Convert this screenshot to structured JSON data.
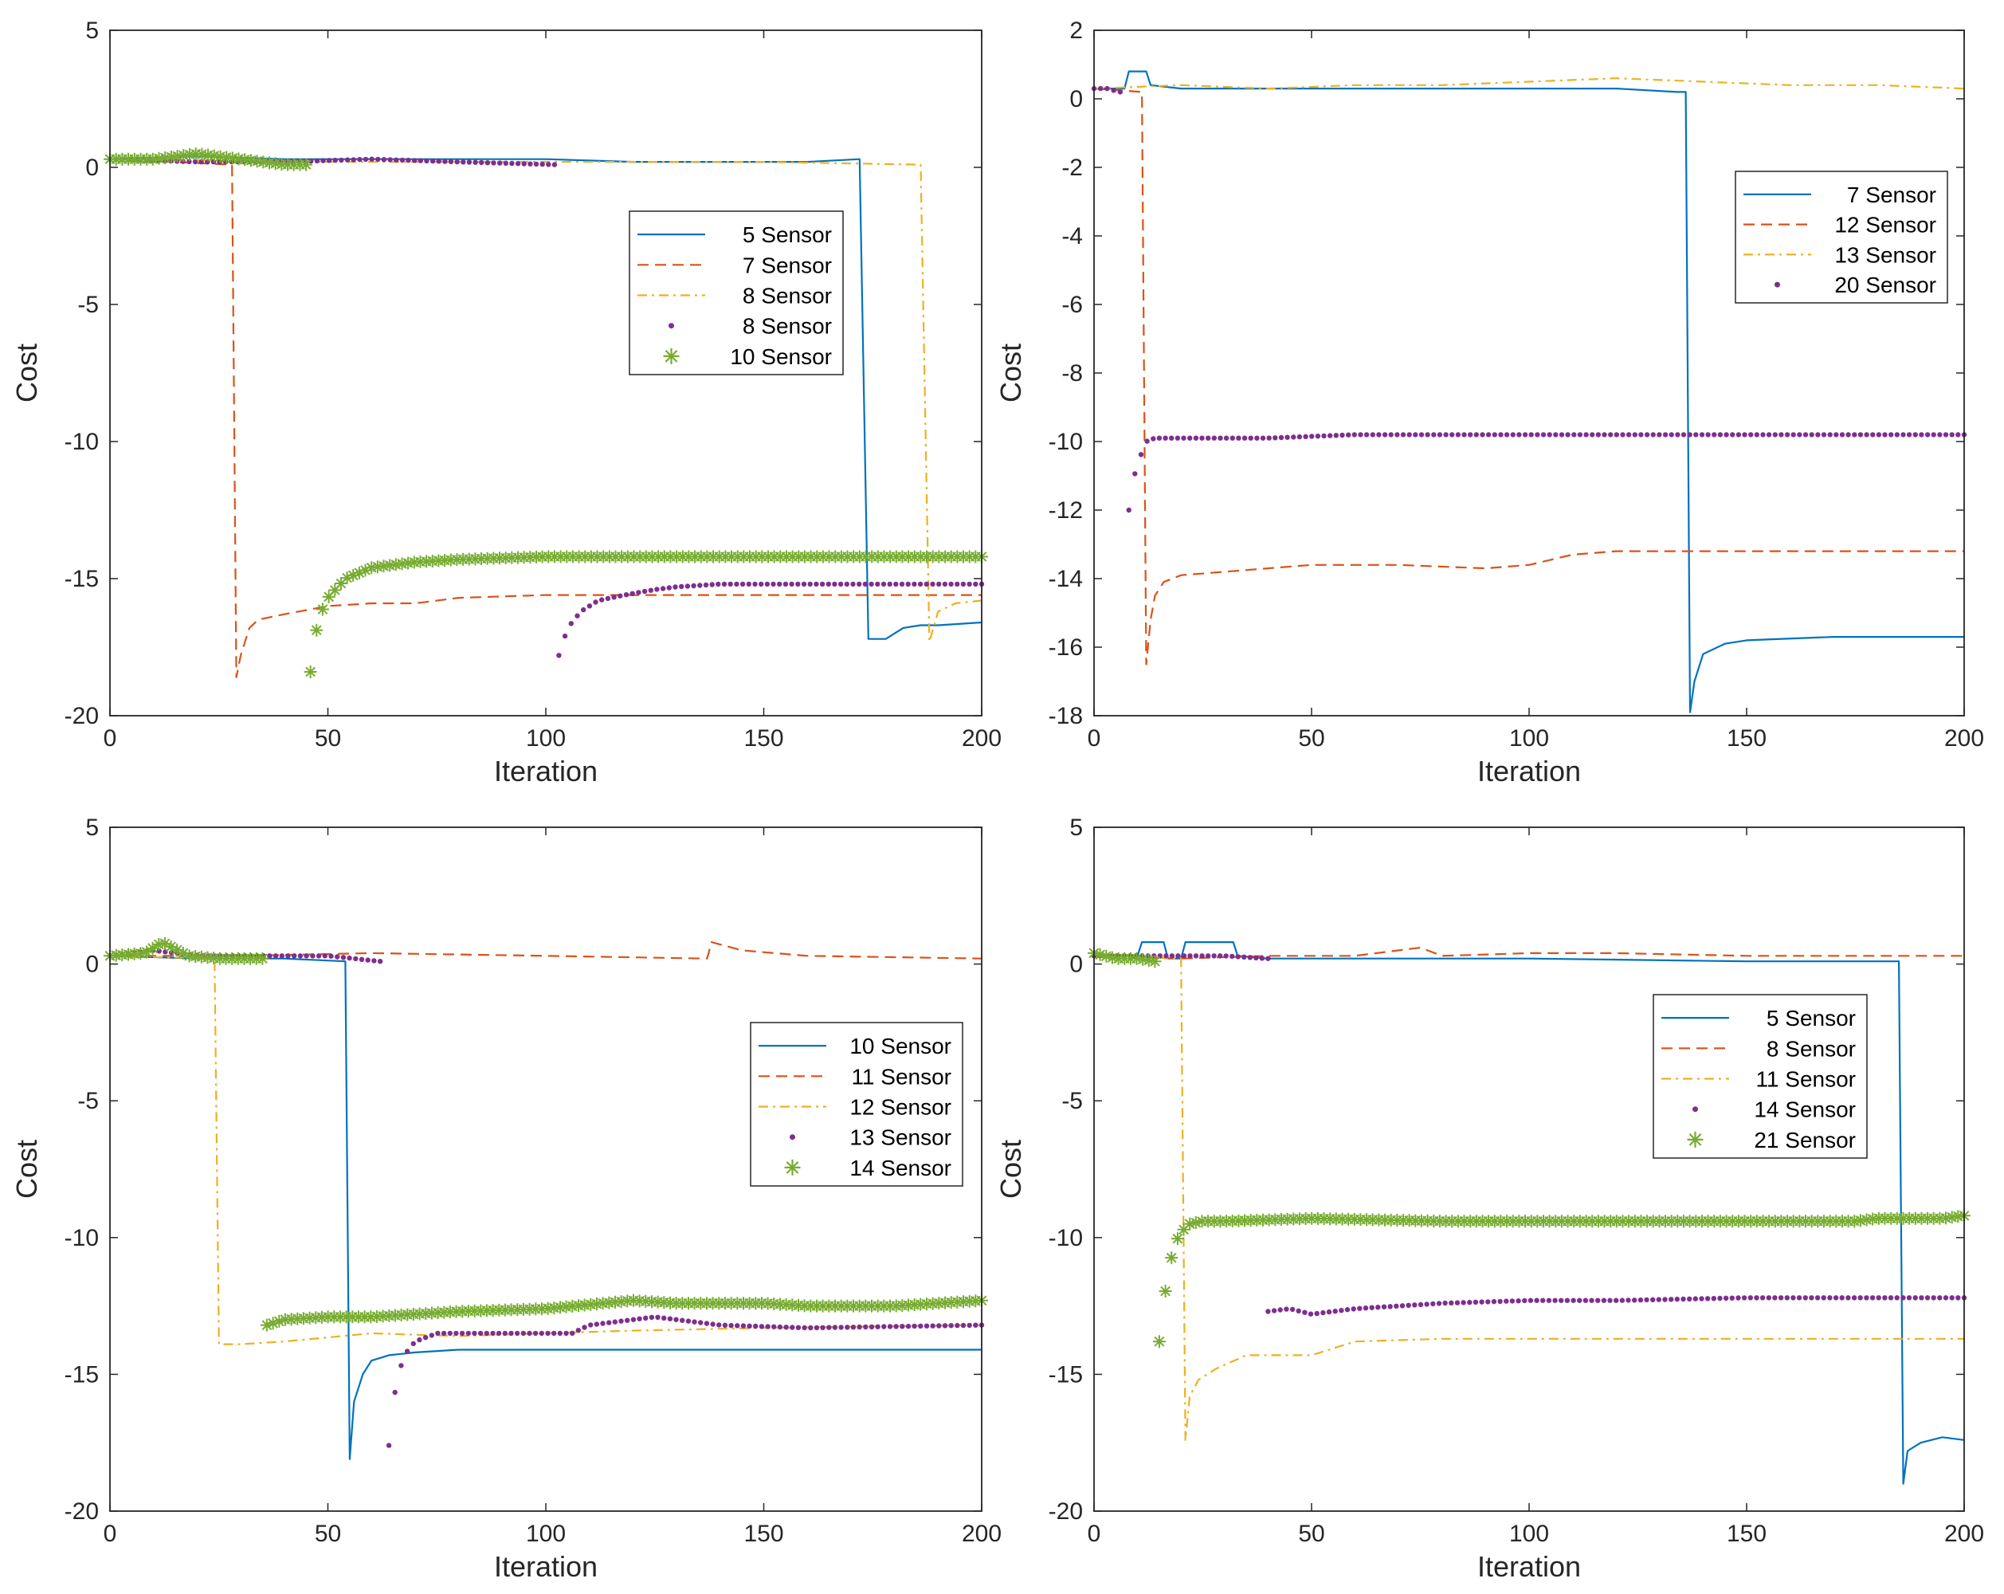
{
  "colors": {
    "blue": "#0072BD",
    "orange": "#D95319",
    "yellow": "#EDB120",
    "purple": "#7E2F8E",
    "green": "#77AC30"
  },
  "chart_data": [
    {
      "type": "line",
      "xlabel": "Iteration",
      "ylabel": "Cost",
      "xlim": [
        0,
        200
      ],
      "ylim": [
        -20,
        5
      ],
      "xticks": [
        0,
        50,
        100,
        150,
        200
      ],
      "yticks": [
        -20,
        -15,
        -10,
        -5,
        0,
        5
      ],
      "legend_position": "middle-right",
      "series": [
        {
          "name": "5 Sensor",
          "style": "solid",
          "color": "#0072BD",
          "x": [
            0,
            20,
            40,
            60,
            80,
            100,
            120,
            140,
            160,
            172,
            174,
            178,
            182,
            186,
            190,
            200
          ],
          "y": [
            0.3,
            0.4,
            0.3,
            0.3,
            0.3,
            0.3,
            0.2,
            0.2,
            0.2,
            0.3,
            -17.2,
            -17.2,
            -16.8,
            -16.7,
            -16.7,
            -16.6
          ]
        },
        {
          "name": "7 Sensor",
          "style": "dashed",
          "color": "#D95319",
          "x": [
            0,
            28,
            29,
            30,
            32,
            34,
            40,
            50,
            60,
            70,
            80,
            100,
            130,
            160,
            200
          ],
          "y": [
            0.3,
            0.1,
            -18.6,
            -17.8,
            -16.8,
            -16.5,
            -16.3,
            -16.0,
            -15.9,
            -15.9,
            -15.7,
            -15.6,
            -15.6,
            -15.6,
            -15.6
          ]
        },
        {
          "name": "8 Sensor",
          "style": "dashdot",
          "color": "#EDB120",
          "x": [
            0,
            50,
            100,
            150,
            186,
            188,
            190,
            194,
            200
          ],
          "y": [
            0.3,
            0.2,
            0.2,
            0.2,
            0.1,
            -17.3,
            -16.2,
            -15.9,
            -15.8
          ]
        },
        {
          "name": "8 Sensor",
          "style": "dots",
          "color": "#7E2F8E",
          "segments": [
            {
              "x": [
                0,
                20,
                40,
                60,
                80,
                102
              ],
              "y": [
                0.3,
                0.2,
                0.2,
                0.3,
                0.2,
                0.1
              ]
            },
            {
              "x": [
                103,
                105,
                108,
                112,
                118,
                125,
                130,
                140,
                160,
                180,
                200
              ],
              "y": [
                -17.8,
                -16.8,
                -16.2,
                -15.8,
                -15.6,
                -15.4,
                -15.3,
                -15.2,
                -15.2,
                -15.2,
                -15.2
              ]
            }
          ]
        },
        {
          "name": "10 Sensor",
          "style": "stars",
          "color": "#77AC30",
          "segments": [
            {
              "x": [
                0,
                10,
                20,
                30,
                40,
                45
              ],
              "y": [
                0.3,
                0.3,
                0.5,
                0.3,
                0.1,
                0.1
              ]
            },
            {
              "x": [
                46,
                47,
                48,
                50,
                54,
                60,
                70,
                80,
                100,
                130,
                160,
                200
              ],
              "y": [
                -18.4,
                -17.2,
                -16.4,
                -15.7,
                -15.0,
                -14.6,
                -14.4,
                -14.3,
                -14.2,
                -14.2,
                -14.2,
                -14.2
              ]
            }
          ]
        }
      ]
    },
    {
      "type": "line",
      "xlabel": "Iteration",
      "ylabel": "Cost",
      "xlim": [
        0,
        200
      ],
      "ylim": [
        -18,
        2
      ],
      "xticks": [
        0,
        50,
        100,
        150,
        200
      ],
      "yticks": [
        -18,
        -16,
        -14,
        -12,
        -10,
        -8,
        -6,
        -4,
        -2,
        0,
        2
      ],
      "legend_position": "top-right",
      "series": [
        {
          "name": "7 Sensor",
          "style": "solid",
          "color": "#0072BD",
          "x": [
            0,
            5,
            7,
            8,
            12,
            13,
            20,
            40,
            60,
            80,
            100,
            120,
            134,
            136,
            137,
            138,
            140,
            145,
            150,
            170,
            200
          ],
          "y": [
            0.3,
            0.3,
            0.3,
            0.8,
            0.8,
            0.4,
            0.3,
            0.3,
            0.3,
            0.3,
            0.3,
            0.3,
            0.2,
            0.2,
            -17.9,
            -17.0,
            -16.2,
            -15.9,
            -15.8,
            -15.7,
            -15.7
          ]
        },
        {
          "name": "12 Sensor",
          "style": "dashed",
          "color": "#D95319",
          "x": [
            0,
            11,
            12,
            13,
            14,
            16,
            20,
            30,
            50,
            70,
            90,
            100,
            110,
            120,
            140,
            200
          ],
          "y": [
            0.3,
            0.2,
            -16.5,
            -15.2,
            -14.5,
            -14.1,
            -13.9,
            -13.8,
            -13.6,
            -13.6,
            -13.7,
            -13.6,
            -13.3,
            -13.2,
            -13.2,
            -13.2
          ]
        },
        {
          "name": "13 Sensor",
          "style": "dashdot",
          "color": "#EDB120",
          "x": [
            0,
            20,
            40,
            60,
            80,
            100,
            120,
            140,
            160,
            180,
            200
          ],
          "y": [
            0.3,
            0.4,
            0.3,
            0.4,
            0.4,
            0.5,
            0.6,
            0.5,
            0.4,
            0.4,
            0.3
          ]
        },
        {
          "name": "20 Sensor",
          "style": "dots",
          "color": "#7E2F8E",
          "segments": [
            {
              "x": [
                0,
                3,
                6
              ],
              "y": [
                0.3,
                0.3,
                0.2
              ]
            },
            {
              "x": [
                8,
                9,
                10,
                11,
                12,
                14,
                20,
                40,
                60,
                80,
                100,
                120,
                140,
                160,
                180,
                200
              ],
              "y": [
                -12.0,
                -11.1,
                -10.7,
                -10.3,
                -10.0,
                -9.9,
                -9.9,
                -9.9,
                -9.8,
                -9.8,
                -9.8,
                -9.8,
                -9.8,
                -9.8,
                -9.8,
                -9.8
              ]
            }
          ]
        }
      ]
    },
    {
      "type": "line",
      "xlabel": "Iteration",
      "ylabel": "Cost",
      "xlim": [
        0,
        200
      ],
      "ylim": [
        -20,
        5
      ],
      "xticks": [
        0,
        50,
        100,
        150,
        200
      ],
      "yticks": [
        -20,
        -15,
        -10,
        -5,
        0,
        5
      ],
      "legend_position": "middle-right",
      "series": [
        {
          "name": "10 Sensor",
          "style": "solid",
          "color": "#0072BD",
          "x": [
            0,
            20,
            40,
            54,
            55,
            56,
            58,
            60,
            64,
            70,
            80,
            100,
            150,
            200
          ],
          "y": [
            0.3,
            0.2,
            0.2,
            0.1,
            -18.1,
            -16.0,
            -15.0,
            -14.5,
            -14.3,
            -14.2,
            -14.1,
            -14.1,
            -14.1,
            -14.1
          ]
        },
        {
          "name": "11 Sensor",
          "style": "dashed",
          "color": "#D95319",
          "x": [
            0,
            30,
            60,
            100,
            137,
            138,
            145,
            160,
            200
          ],
          "y": [
            0.3,
            0.3,
            0.4,
            0.3,
            0.2,
            0.8,
            0.5,
            0.3,
            0.2
          ]
        },
        {
          "name": "12 Sensor",
          "style": "dashdot",
          "color": "#EDB120",
          "x": [
            0,
            24,
            25,
            30,
            40,
            60,
            80,
            100,
            120,
            150,
            200
          ],
          "y": [
            0.3,
            0.2,
            -13.9,
            -13.9,
            -13.8,
            -13.5,
            -13.6,
            -13.5,
            -13.4,
            -13.3,
            -13.2
          ]
        },
        {
          "name": "13 Sensor",
          "style": "dots",
          "color": "#7E2F8E",
          "segments": [
            {
              "x": [
                0,
                10,
                20,
                40,
                50,
                62
              ],
              "y": [
                0.3,
                0.5,
                0.3,
                0.3,
                0.3,
                0.1
              ]
            },
            {
              "x": [
                64,
                65,
                66,
                68,
                70,
                75,
                90,
                106,
                110,
                125,
                140,
                160,
                200
              ],
              "y": [
                -17.6,
                -16.1,
                -15.0,
                -14.2,
                -13.8,
                -13.5,
                -13.5,
                -13.5,
                -13.2,
                -12.9,
                -13.2,
                -13.3,
                -13.2
              ]
            }
          ]
        },
        {
          "name": "14 Sensor",
          "style": "stars",
          "color": "#77AC30",
          "segments": [
            {
              "x": [
                0,
                8,
                12,
                18,
                25,
                30,
                35
              ],
              "y": [
                0.3,
                0.4,
                0.8,
                0.3,
                0.2,
                0.2,
                0.2
              ]
            },
            {
              "x": [
                36,
                40,
                50,
                60,
                80,
                100,
                120,
                130,
                150,
                160,
                180,
                200
              ],
              "y": [
                -13.2,
                -13.0,
                -12.9,
                -12.9,
                -12.7,
                -12.6,
                -12.3,
                -12.4,
                -12.4,
                -12.5,
                -12.5,
                -12.3
              ]
            }
          ]
        }
      ]
    },
    {
      "type": "line",
      "xlabel": "Iteration",
      "ylabel": "Cost",
      "xlim": [
        0,
        200
      ],
      "ylim": [
        -20,
        5
      ],
      "xticks": [
        0,
        50,
        100,
        150,
        200
      ],
      "yticks": [
        -20,
        -15,
        -10,
        -5,
        0,
        5
      ],
      "legend_position": "middle-right",
      "series": [
        {
          "name": "5 Sensor",
          "style": "solid",
          "color": "#0072BD",
          "x": [
            0,
            10,
            11,
            16,
            17,
            20,
            21,
            32,
            33,
            40,
            60,
            100,
            150,
            185,
            186,
            187,
            190,
            195,
            200
          ],
          "y": [
            0.3,
            0.3,
            0.8,
            0.8,
            0.2,
            0.2,
            0.8,
            0.8,
            0.3,
            0.2,
            0.2,
            0.2,
            0.1,
            0.1,
            -19.0,
            -17.8,
            -17.5,
            -17.3,
            -17.4
          ]
        },
        {
          "name": "8 Sensor",
          "style": "dashed",
          "color": "#D95319",
          "x": [
            0,
            20,
            40,
            60,
            75,
            80,
            100,
            120,
            150,
            180,
            200
          ],
          "y": [
            0.3,
            0.2,
            0.3,
            0.3,
            0.6,
            0.3,
            0.4,
            0.4,
            0.3,
            0.3,
            0.3
          ]
        },
        {
          "name": "11 Sensor",
          "style": "dashdot",
          "color": "#EDB120",
          "x": [
            0,
            20,
            21,
            22,
            24,
            28,
            35,
            50,
            60,
            80,
            100,
            150,
            200
          ],
          "y": [
            0.3,
            0.2,
            -17.4,
            -15.8,
            -15.2,
            -14.8,
            -14.3,
            -14.3,
            -13.8,
            -13.7,
            -13.7,
            -13.7,
            -13.7
          ]
        },
        {
          "name": "14 Sensor",
          "style": "dots",
          "color": "#7E2F8E",
          "segments": [
            {
              "x": [
                0,
                10,
                20,
                30,
                40
              ],
              "y": [
                0.3,
                0.3,
                0.3,
                0.3,
                0.2
              ]
            },
            {
              "x": [
                40,
                45,
                50,
                60,
                80,
                100,
                120,
                150,
                200
              ],
              "y": [
                -12.7,
                -12.6,
                -12.8,
                -12.6,
                -12.4,
                -12.3,
                -12.3,
                -12.2,
                -12.2
              ]
            }
          ]
        },
        {
          "name": "21 Sensor",
          "style": "stars",
          "color": "#77AC30",
          "segments": [
            {
              "x": [
                0,
                5,
                10,
                14
              ],
              "y": [
                0.4,
                0.2,
                0.2,
                0.1
              ]
            },
            {
              "x": [
                15,
                16,
                17,
                18,
                19,
                20,
                22,
                25,
                30,
                50,
                80,
                100,
                150,
                175,
                180,
                195,
                200
              ],
              "y": [
                -13.8,
                -12.4,
                -11.3,
                -10.6,
                -10.1,
                -9.8,
                -9.5,
                -9.4,
                -9.4,
                -9.3,
                -9.4,
                -9.4,
                -9.4,
                -9.4,
                -9.3,
                -9.3,
                -9.2
              ]
            }
          ]
        }
      ]
    }
  ]
}
